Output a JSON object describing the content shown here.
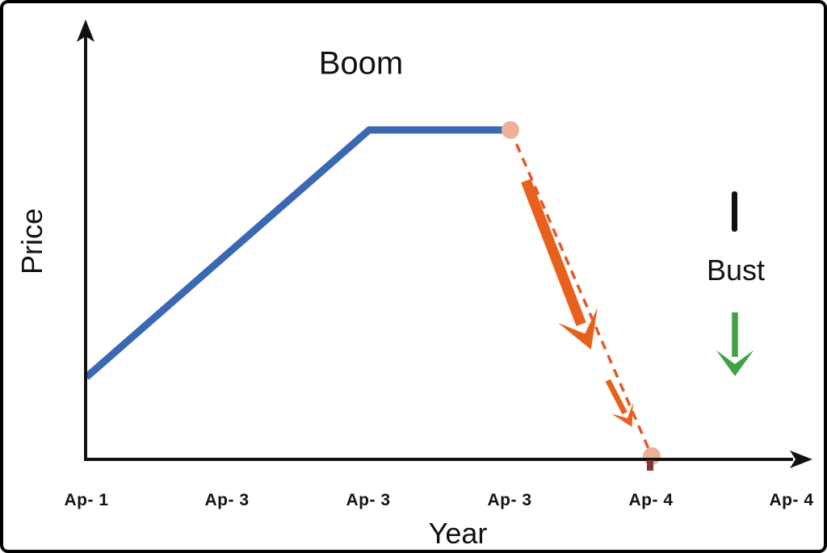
{
  "frame": {
    "border_color": "#000000",
    "background": "#ffffff"
  },
  "chart_data": {
    "type": "line",
    "title": "",
    "xlabel": "Year",
    "ylabel": "Price",
    "x_tick_labels": [
      "Ap- 1",
      "Ap- 3",
      "Ap- 3",
      "Ap- 3",
      "Ap- 4",
      "Ap- 4"
    ],
    "ylim": [
      0,
      1
    ],
    "grid": false,
    "legend_position": "none",
    "annotations": {
      "boom_label": "Boom"
    },
    "series": [
      {
        "name": "boom-price-line",
        "style": "solid",
        "color": "#3A68B4",
        "width": 9,
        "points": [
          [
            0,
            0.246
          ],
          [
            2,
            1.0
          ],
          [
            3,
            1.0
          ]
        ]
      },
      {
        "name": "bust-dashed-line",
        "style": "dashed",
        "color": "#E05A28",
        "width": 3.5,
        "dash": "11 8",
        "points": [
          [
            3,
            1.0
          ],
          [
            4,
            0.005
          ]
        ]
      }
    ],
    "markers": {
      "color": "#EFB098",
      "radius": 11,
      "points": [
        [
          3,
          1.0
        ],
        [
          4,
          0.005
        ]
      ]
    },
    "arrows": [
      {
        "name": "bust-arrow-large",
        "color": "#E8611C",
        "width": 13,
        "head": 42,
        "from": [
          3.11,
          0.845
        ],
        "to": [
          3.57,
          0.33
        ]
      },
      {
        "name": "bust-arrow-small",
        "color": "#E8611C",
        "width": 7,
        "head": 24,
        "from": [
          3.69,
          0.236
        ],
        "to": [
          3.86,
          0.094
        ]
      }
    ],
    "axis_color": "#111111",
    "end_tick_color": "#7C3A2E"
  },
  "legend_panel": {
    "bust_label": "Bust",
    "bar_color": "#111111",
    "down_arrow_color": "#3FA245"
  }
}
